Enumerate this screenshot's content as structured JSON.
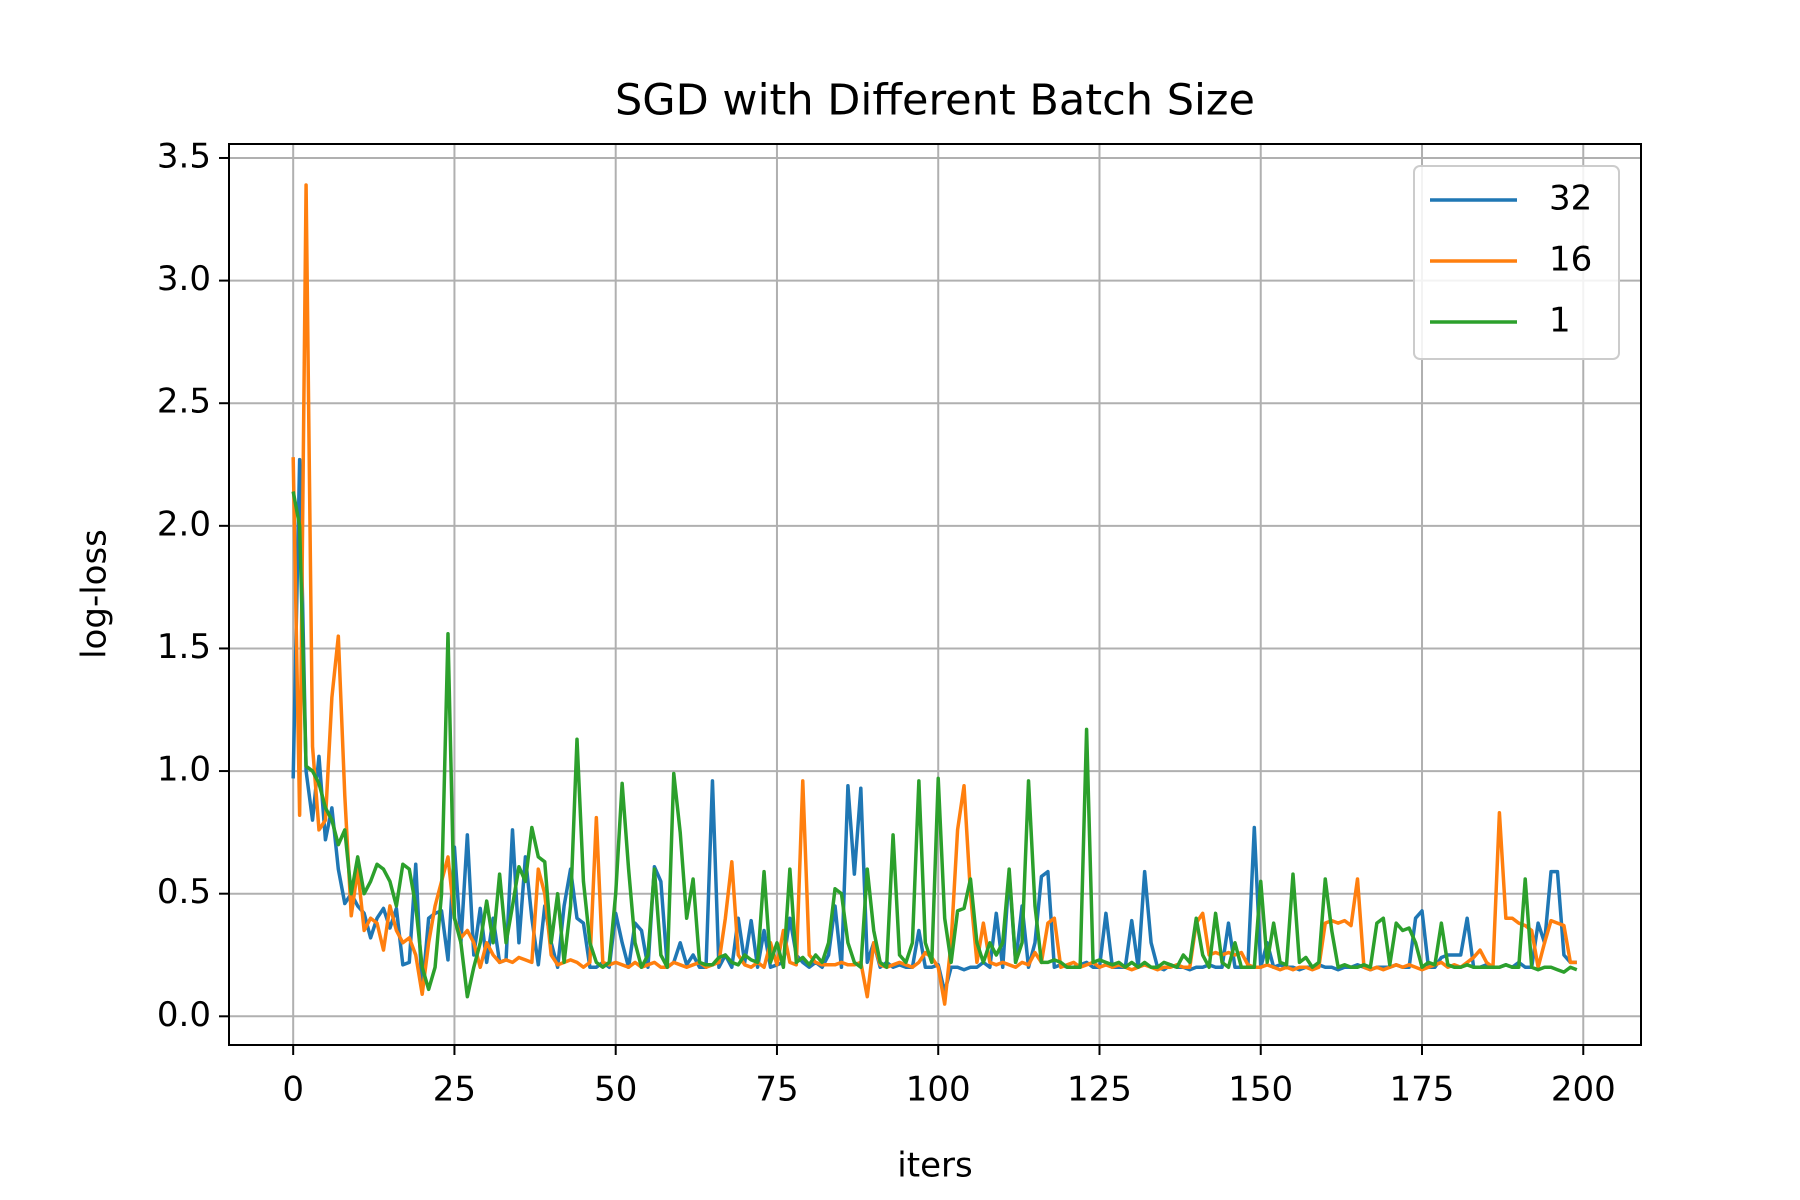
{
  "chart_data": {
    "type": "line",
    "title": "SGD with Different Batch Size",
    "xlabel": "iters",
    "ylabel": "log-loss",
    "x": [
      0,
      1,
      2,
      3,
      4,
      5,
      6,
      7,
      8,
      9,
      10,
      11,
      12,
      13,
      14,
      15,
      16,
      17,
      18,
      19,
      20,
      21,
      22,
      23,
      24,
      25,
      26,
      27,
      28,
      29,
      30,
      31,
      32,
      33,
      34,
      35,
      36,
      37,
      38,
      39,
      40,
      41,
      42,
      43,
      44,
      45,
      46,
      47,
      48,
      49,
      50,
      51,
      52,
      53,
      54,
      55,
      56,
      57,
      58,
      59,
      60,
      61,
      62,
      63,
      64,
      65,
      66,
      67,
      68,
      69,
      70,
      71,
      72,
      73,
      74,
      75,
      76,
      77,
      78,
      79,
      80,
      81,
      82,
      83,
      84,
      85,
      86,
      87,
      88,
      89,
      90,
      91,
      92,
      93,
      94,
      95,
      96,
      97,
      98,
      99,
      100,
      101,
      102,
      103,
      104,
      105,
      106,
      107,
      108,
      109,
      110,
      111,
      112,
      113,
      114,
      115,
      116,
      117,
      118,
      119,
      120,
      121,
      122,
      123,
      124,
      125,
      126,
      127,
      128,
      129,
      130,
      131,
      132,
      133,
      134,
      135,
      136,
      137,
      138,
      139,
      140,
      141,
      142,
      143,
      144,
      145,
      146,
      147,
      148,
      149,
      150,
      151,
      152,
      153,
      154,
      155,
      156,
      157,
      158,
      159,
      160,
      161,
      162,
      163,
      164,
      165,
      166,
      167,
      168,
      169,
      170,
      171,
      172,
      173,
      174,
      175,
      176,
      177,
      178,
      179,
      180,
      181,
      182,
      183,
      184,
      185,
      186,
      187,
      188,
      189,
      190,
      191,
      192,
      193,
      194,
      195,
      196,
      197,
      198,
      199
    ],
    "series": [
      {
        "name": "32",
        "color": "#1f77b4",
        "values": [
          0.97,
          2.27,
          1.0,
          0.8,
          1.06,
          0.72,
          0.85,
          0.6,
          0.46,
          0.5,
          0.45,
          0.42,
          0.32,
          0.4,
          0.44,
          0.36,
          0.44,
          0.21,
          0.22,
          0.62,
          0.1,
          0.4,
          0.42,
          0.43,
          0.23,
          0.69,
          0.3,
          0.74,
          0.25,
          0.44,
          0.22,
          0.4,
          0.22,
          0.23,
          0.76,
          0.3,
          0.65,
          0.4,
          0.21,
          0.45,
          0.3,
          0.2,
          0.45,
          0.6,
          0.4,
          0.38,
          0.2,
          0.2,
          0.22,
          0.2,
          0.42,
          0.3,
          0.2,
          0.38,
          0.35,
          0.2,
          0.61,
          0.55,
          0.2,
          0.22,
          0.3,
          0.21,
          0.25,
          0.2,
          0.2,
          0.96,
          0.2,
          0.25,
          0.2,
          0.4,
          0.22,
          0.39,
          0.2,
          0.35,
          0.2,
          0.21,
          0.22,
          0.4,
          0.25,
          0.22,
          0.2,
          0.22,
          0.2,
          0.25,
          0.45,
          0.2,
          0.94,
          0.58,
          0.93,
          0.22,
          0.3,
          0.2,
          0.22,
          0.2,
          0.21,
          0.2,
          0.2,
          0.35,
          0.2,
          0.2,
          0.21,
          0.1,
          0.2,
          0.2,
          0.19,
          0.2,
          0.2,
          0.22,
          0.2,
          0.42,
          0.2,
          0.58,
          0.22,
          0.45,
          0.2,
          0.3,
          0.57,
          0.59,
          0.2,
          0.21,
          0.2,
          0.2,
          0.21,
          0.22,
          0.2,
          0.2,
          0.42,
          0.2,
          0.2,
          0.2,
          0.39,
          0.2,
          0.59,
          0.3,
          0.2,
          0.19,
          0.21,
          0.2,
          0.2,
          0.19,
          0.2,
          0.2,
          0.21,
          0.2,
          0.2,
          0.38,
          0.2,
          0.2,
          0.2,
          0.77,
          0.2,
          0.3,
          0.2,
          0.21,
          0.2,
          0.2,
          0.19,
          0.2,
          0.2,
          0.21,
          0.2,
          0.2,
          0.19,
          0.2,
          0.2,
          0.21,
          0.2,
          0.19,
          0.2,
          0.2,
          0.2,
          0.21,
          0.2,
          0.2,
          0.4,
          0.43,
          0.2,
          0.2,
          0.24,
          0.25,
          0.25,
          0.25,
          0.4,
          0.2,
          0.2,
          0.21,
          0.2,
          0.2,
          0.21,
          0.2,
          0.22,
          0.2,
          0.2,
          0.38,
          0.3,
          0.59,
          0.59,
          0.25,
          0.22,
          0.22
        ]
      },
      {
        "name": "16",
        "color": "#ff7f0e",
        "values": [
          2.28,
          0.82,
          3.39,
          1.1,
          0.76,
          0.8,
          1.3,
          1.55,
          0.9,
          0.41,
          0.6,
          0.35,
          0.4,
          0.38,
          0.27,
          0.45,
          0.35,
          0.3,
          0.32,
          0.25,
          0.09,
          0.3,
          0.45,
          0.55,
          0.65,
          0.4,
          0.32,
          0.35,
          0.3,
          0.2,
          0.3,
          0.25,
          0.22,
          0.23,
          0.22,
          0.24,
          0.23,
          0.22,
          0.6,
          0.5,
          0.25,
          0.21,
          0.22,
          0.23,
          0.22,
          0.2,
          0.22,
          0.81,
          0.22,
          0.21,
          0.22,
          0.21,
          0.2,
          0.22,
          0.2,
          0.21,
          0.22,
          0.2,
          0.2,
          0.22,
          0.21,
          0.2,
          0.21,
          0.22,
          0.2,
          0.21,
          0.22,
          0.4,
          0.63,
          0.25,
          0.21,
          0.2,
          0.22,
          0.2,
          0.3,
          0.21,
          0.35,
          0.22,
          0.21,
          0.96,
          0.25,
          0.22,
          0.21,
          0.21,
          0.21,
          0.22,
          0.21,
          0.21,
          0.22,
          0.08,
          0.3,
          0.21,
          0.2,
          0.21,
          0.22,
          0.21,
          0.2,
          0.22,
          0.26,
          0.24,
          0.2,
          0.05,
          0.3,
          0.76,
          0.94,
          0.5,
          0.22,
          0.38,
          0.22,
          0.21,
          0.22,
          0.21,
          0.2,
          0.22,
          0.21,
          0.26,
          0.22,
          0.38,
          0.4,
          0.2,
          0.21,
          0.22,
          0.2,
          0.21,
          0.22,
          0.2,
          0.21,
          0.2,
          0.21,
          0.2,
          0.19,
          0.2,
          0.21,
          0.2,
          0.19,
          0.2,
          0.2,
          0.21,
          0.2,
          0.2,
          0.38,
          0.42,
          0.25,
          0.26,
          0.25,
          0.26,
          0.25,
          0.26,
          0.21,
          0.2,
          0.2,
          0.21,
          0.2,
          0.19,
          0.2,
          0.19,
          0.2,
          0.2,
          0.19,
          0.2,
          0.38,
          0.39,
          0.38,
          0.39,
          0.37,
          0.56,
          0.2,
          0.19,
          0.2,
          0.19,
          0.2,
          0.21,
          0.2,
          0.21,
          0.2,
          0.19,
          0.2,
          0.21,
          0.22,
          0.2,
          0.21,
          0.2,
          0.22,
          0.24,
          0.27,
          0.22,
          0.2,
          0.83,
          0.4,
          0.4,
          0.38,
          0.37,
          0.35,
          0.2,
          0.3,
          0.39,
          0.38,
          0.37,
          0.22,
          0.22
        ]
      },
      {
        "name": "1",
        "color": "#2ca02c",
        "values": [
          2.14,
          2.0,
          1.02,
          1.0,
          0.95,
          0.85,
          0.8,
          0.7,
          0.76,
          0.5,
          0.65,
          0.5,
          0.55,
          0.62,
          0.6,
          0.55,
          0.45,
          0.62,
          0.6,
          0.45,
          0.2,
          0.11,
          0.2,
          0.5,
          1.56,
          0.4,
          0.3,
          0.08,
          0.2,
          0.3,
          0.47,
          0.3,
          0.58,
          0.3,
          0.45,
          0.61,
          0.55,
          0.77,
          0.65,
          0.63,
          0.3,
          0.5,
          0.22,
          0.45,
          1.13,
          0.55,
          0.3,
          0.22,
          0.2,
          0.22,
          0.5,
          0.95,
          0.6,
          0.3,
          0.2,
          0.25,
          0.6,
          0.25,
          0.2,
          0.99,
          0.75,
          0.4,
          0.56,
          0.22,
          0.21,
          0.21,
          0.24,
          0.25,
          0.22,
          0.21,
          0.25,
          0.23,
          0.22,
          0.59,
          0.22,
          0.3,
          0.2,
          0.6,
          0.22,
          0.24,
          0.21,
          0.25,
          0.22,
          0.3,
          0.52,
          0.5,
          0.3,
          0.22,
          0.2,
          0.6,
          0.35,
          0.22,
          0.2,
          0.74,
          0.25,
          0.22,
          0.3,
          0.96,
          0.3,
          0.22,
          0.97,
          0.4,
          0.22,
          0.43,
          0.44,
          0.56,
          0.3,
          0.22,
          0.3,
          0.25,
          0.3,
          0.6,
          0.22,
          0.3,
          0.96,
          0.45,
          0.22,
          0.22,
          0.23,
          0.22,
          0.2,
          0.2,
          0.2,
          1.17,
          0.22,
          0.23,
          0.22,
          0.21,
          0.22,
          0.2,
          0.22,
          0.2,
          0.22,
          0.2,
          0.2,
          0.22,
          0.21,
          0.2,
          0.25,
          0.22,
          0.4,
          0.25,
          0.2,
          0.42,
          0.22,
          0.2,
          0.3,
          0.2,
          0.2,
          0.2,
          0.55,
          0.22,
          0.38,
          0.22,
          0.21,
          0.58,
          0.22,
          0.24,
          0.2,
          0.22,
          0.56,
          0.35,
          0.2,
          0.21,
          0.2,
          0.2,
          0.21,
          0.2,
          0.38,
          0.4,
          0.21,
          0.38,
          0.35,
          0.36,
          0.3,
          0.2,
          0.22,
          0.21,
          0.38,
          0.21,
          0.2,
          0.2,
          0.21,
          0.2,
          0.2,
          0.2,
          0.2,
          0.2,
          0.21,
          0.2,
          0.2,
          0.56,
          0.2,
          0.19,
          0.2,
          0.2,
          0.19,
          0.18,
          0.2,
          0.19
        ]
      }
    ],
    "xlim": [
      -9.95,
      208.95
    ],
    "xticks": [
      0,
      25,
      50,
      75,
      100,
      125,
      150,
      175,
      200
    ],
    "ylim": [
      -0.117,
      3.557
    ],
    "yticks": [
      {
        "value": 0,
        "label": "0.0"
      },
      0.5,
      {
        "value": 1,
        "label": "1.0"
      },
      1.5,
      {
        "value": 2,
        "label": "2.0"
      },
      2.5,
      {
        "value": 3,
        "label": "3.0"
      },
      3.5
    ],
    "grid": true,
    "legend": "upper right"
  }
}
